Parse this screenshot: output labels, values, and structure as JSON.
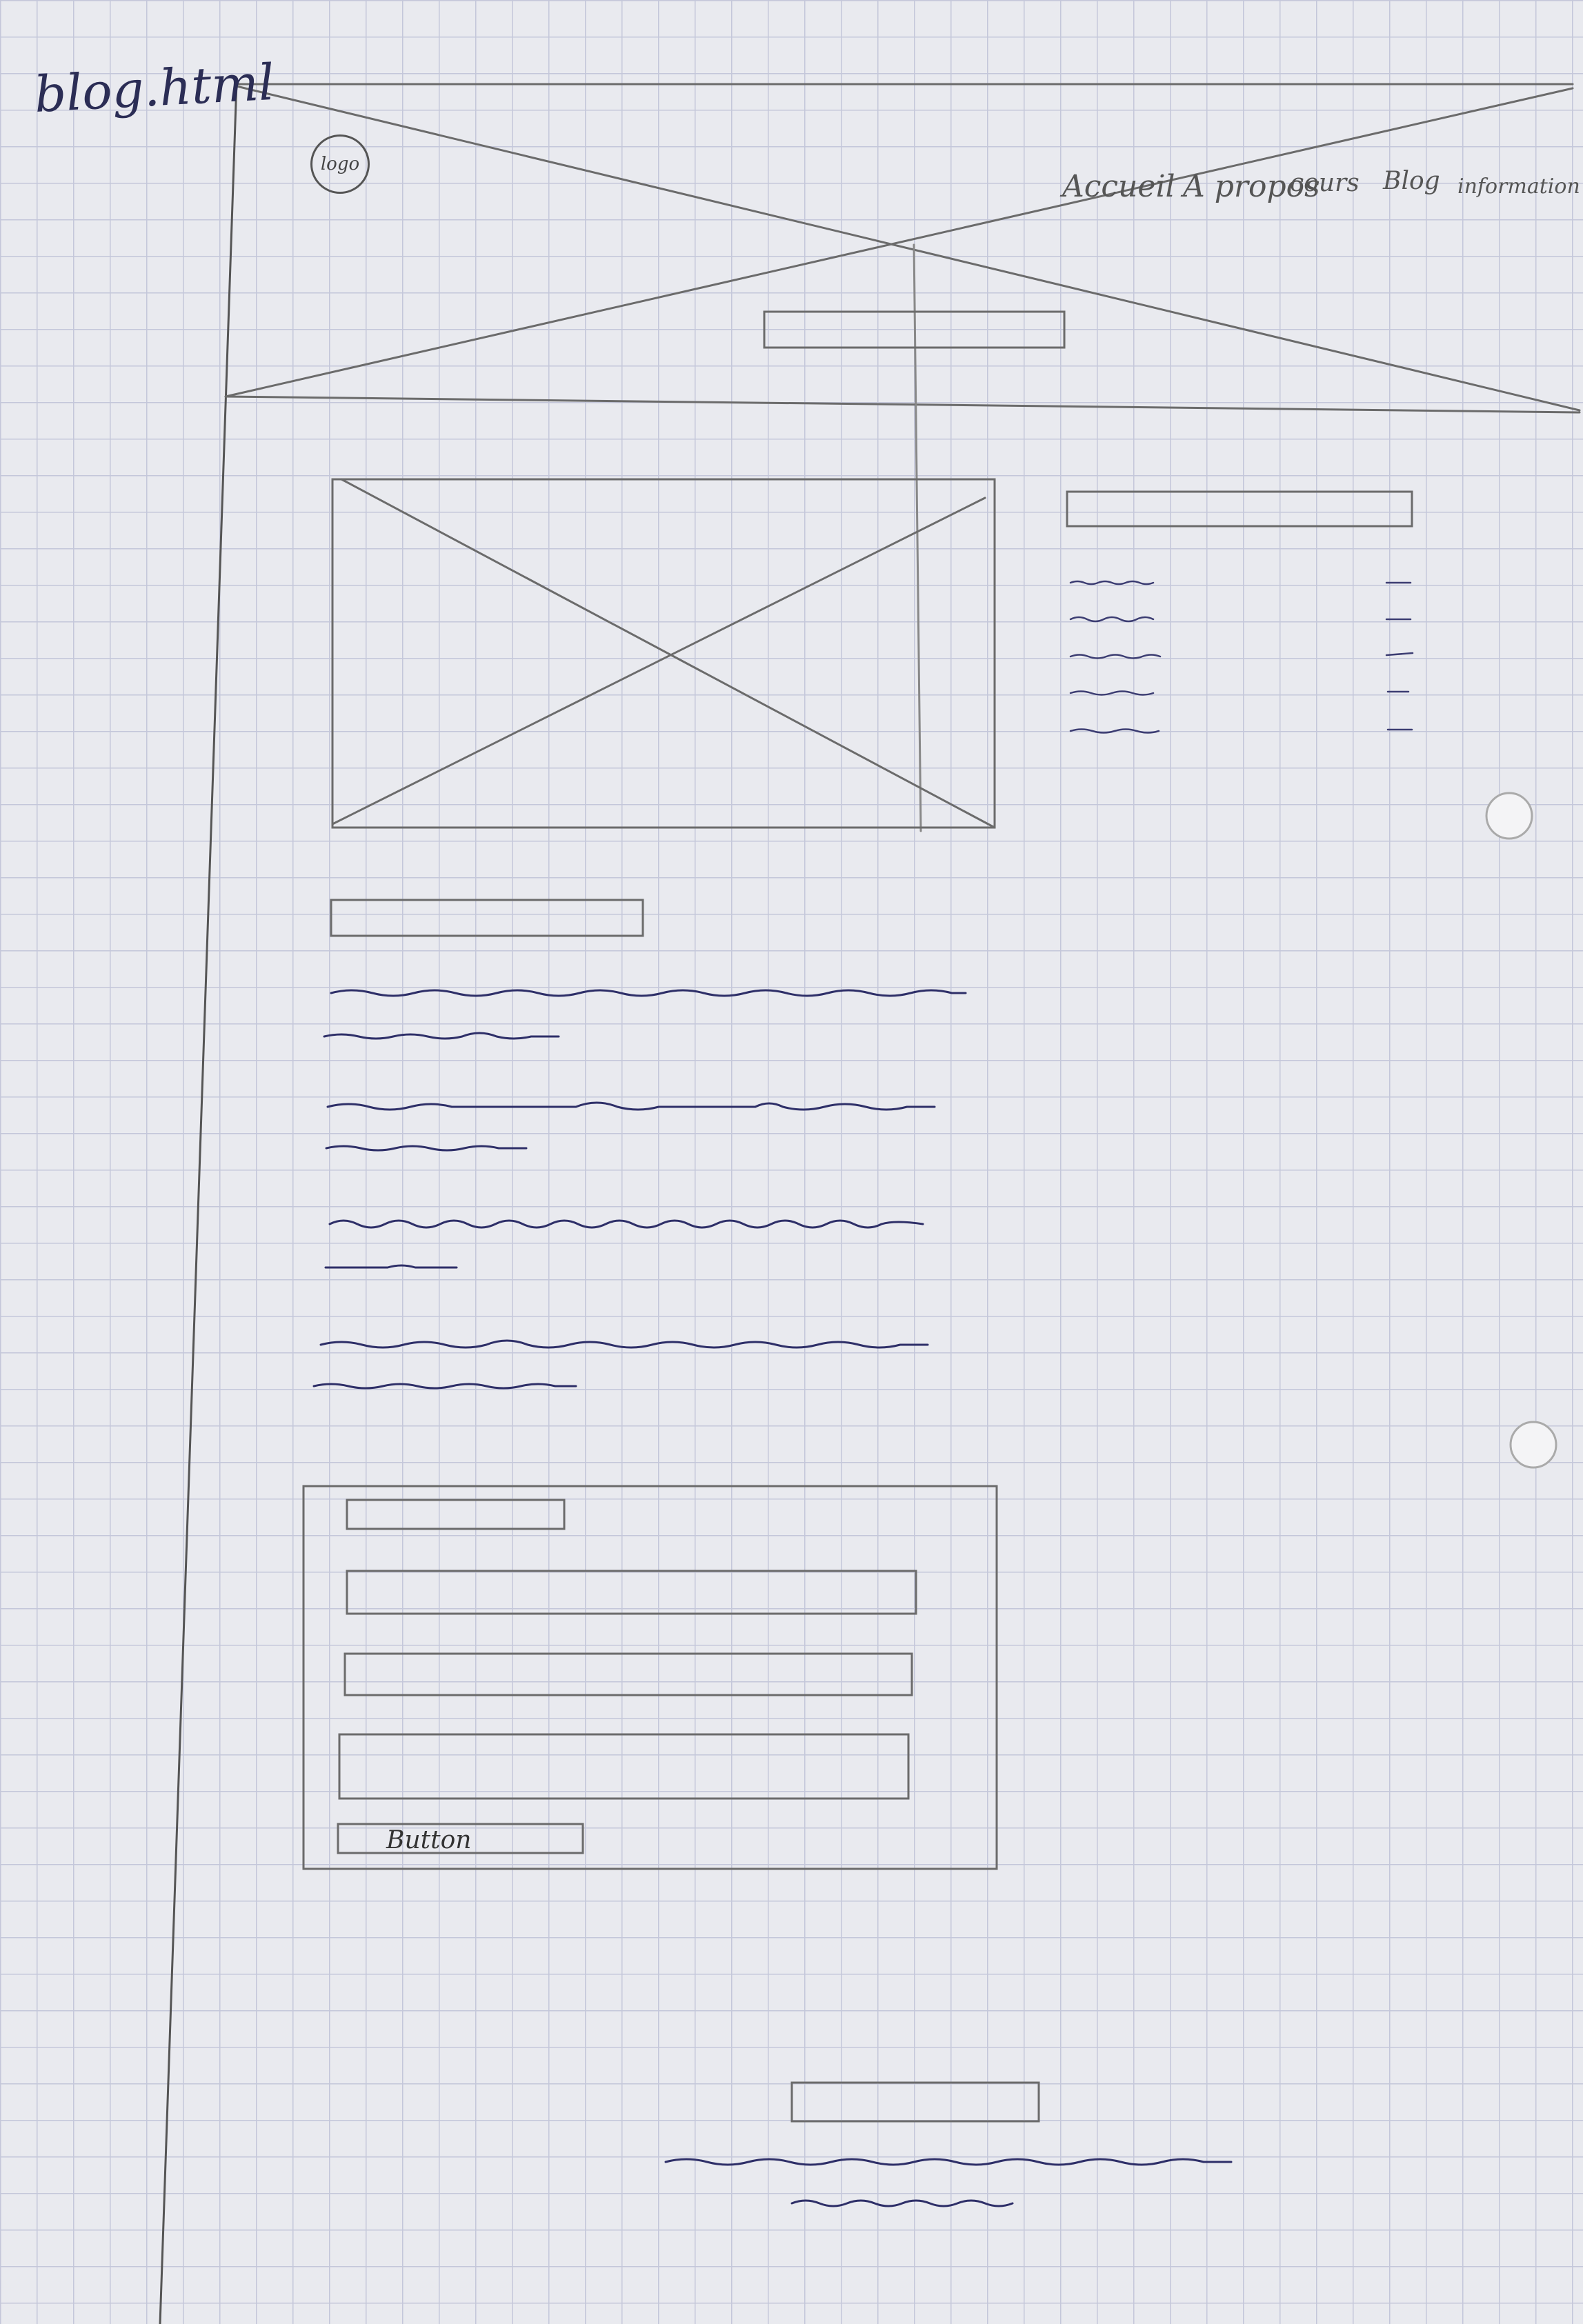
{
  "sketch": {
    "title": "blog.html",
    "logo_label": "logo",
    "nav": [
      "Accueil",
      "A propos",
      "cours",
      "Blog",
      "information"
    ],
    "form_button_label": "Button"
  }
}
